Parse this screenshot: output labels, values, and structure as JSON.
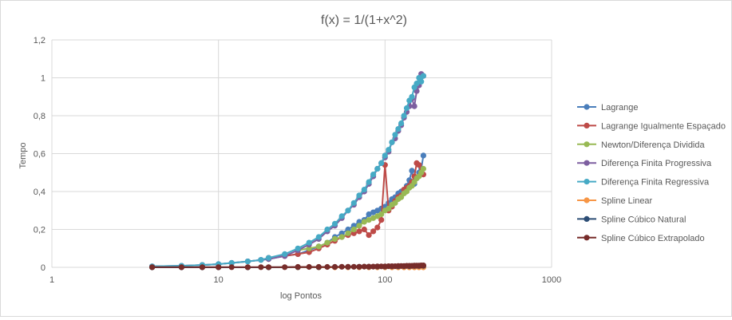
{
  "chart_data": {
    "type": "line",
    "title": "f(x) = 1/(1+x^2)",
    "xlabel": "log Pontos",
    "ylabel": "Tempo",
    "xscale": "log",
    "xlim": [
      1,
      1000
    ],
    "ylim": [
      0,
      1.2
    ],
    "x_ticks": [
      "1",
      "10",
      "100",
      "1000"
    ],
    "y_ticks": [
      "0",
      "0,2",
      "0,4",
      "0,6",
      "0,8",
      "1",
      "1,2"
    ],
    "grid": true,
    "legend_position": "right",
    "series": [
      {
        "name": "Lagrange",
        "color": "#4a7ebb",
        "x": [
          4,
          6,
          8,
          10,
          12,
          15,
          18,
          20,
          25,
          30,
          35,
          40,
          45,
          50,
          55,
          60,
          65,
          70,
          75,
          80,
          85,
          90,
          95,
          100,
          105,
          110,
          115,
          120,
          125,
          130,
          135,
          140,
          145,
          150,
          155,
          160,
          165,
          170
        ],
        "y": [
          0.005,
          0.008,
          0.012,
          0.017,
          0.023,
          0.031,
          0.039,
          0.044,
          0.06,
          0.07,
          0.09,
          0.11,
          0.13,
          0.16,
          0.18,
          0.2,
          0.22,
          0.24,
          0.25,
          0.28,
          0.29,
          0.3,
          0.31,
          0.32,
          0.34,
          0.36,
          0.37,
          0.39,
          0.4,
          0.41,
          0.43,
          0.46,
          0.51,
          0.44,
          0.47,
          0.5,
          0.52,
          0.59
        ]
      },
      {
        "name": "Lagrange Igualmente Espaçado",
        "color": "#be4b48",
        "x": [
          20,
          25,
          30,
          35,
          40,
          45,
          50,
          55,
          60,
          65,
          70,
          75,
          80,
          85,
          90,
          95,
          100,
          105,
          110,
          115,
          120,
          125,
          130,
          135,
          140,
          145,
          150,
          155,
          160,
          165,
          170
        ],
        "y": [
          0.05,
          0.06,
          0.07,
          0.08,
          0.1,
          0.12,
          0.14,
          0.16,
          0.17,
          0.18,
          0.19,
          0.2,
          0.17,
          0.19,
          0.21,
          0.25,
          0.54,
          0.3,
          0.32,
          0.35,
          0.37,
          0.38,
          0.41,
          0.42,
          0.43,
          0.45,
          0.48,
          0.55,
          0.54,
          0.5,
          0.49
        ]
      },
      {
        "name": "Newton/Diferença Dividida",
        "color": "#98b954",
        "x": [
          30,
          35,
          40,
          45,
          50,
          55,
          60,
          65,
          70,
          75,
          80,
          85,
          90,
          95,
          100,
          105,
          110,
          115,
          120,
          125,
          130,
          135,
          140,
          145,
          150,
          155,
          160,
          165,
          170
        ],
        "y": [
          0.09,
          0.1,
          0.11,
          0.13,
          0.15,
          0.16,
          0.18,
          0.2,
          0.22,
          0.24,
          0.25,
          0.26,
          0.27,
          0.28,
          0.3,
          0.31,
          0.33,
          0.34,
          0.36,
          0.37,
          0.39,
          0.4,
          0.42,
          0.43,
          0.45,
          0.47,
          0.48,
          0.5,
          0.52
        ]
      },
      {
        "name": "Diferença Finita Progressiva",
        "color": "#7d5fa0",
        "x": [
          4,
          6,
          8,
          10,
          12,
          15,
          18,
          20,
          25,
          30,
          35,
          40,
          45,
          50,
          55,
          60,
          65,
          70,
          75,
          80,
          85,
          90,
          95,
          100,
          105,
          110,
          115,
          120,
          125,
          130,
          135,
          140,
          145,
          150,
          155,
          160,
          165,
          170
        ],
        "y": [
          0.005,
          0.008,
          0.012,
          0.017,
          0.023,
          0.031,
          0.039,
          0.044,
          0.06,
          0.09,
          0.12,
          0.15,
          0.19,
          0.22,
          0.26,
          0.3,
          0.33,
          0.37,
          0.4,
          0.44,
          0.48,
          0.52,
          0.55,
          0.58,
          0.61,
          0.66,
          0.68,
          0.72,
          0.75,
          0.79,
          0.82,
          0.85,
          0.89,
          0.85,
          0.93,
          0.96,
          1.02,
          1.01
        ]
      },
      {
        "name": "Diferença Finita Regressiva",
        "color": "#46aac5",
        "x": [
          4,
          6,
          8,
          10,
          12,
          15,
          18,
          20,
          25,
          30,
          35,
          40,
          45,
          50,
          55,
          60,
          65,
          70,
          75,
          80,
          85,
          90,
          95,
          100,
          105,
          110,
          115,
          120,
          125,
          130,
          135,
          140,
          145,
          150,
          155,
          160,
          165,
          170
        ],
        "y": [
          0.005,
          0.008,
          0.012,
          0.017,
          0.023,
          0.031,
          0.039,
          0.05,
          0.07,
          0.1,
          0.13,
          0.16,
          0.2,
          0.23,
          0.27,
          0.3,
          0.34,
          0.38,
          0.41,
          0.45,
          0.49,
          0.52,
          0.55,
          0.59,
          0.62,
          0.66,
          0.7,
          0.73,
          0.76,
          0.8,
          0.84,
          0.88,
          0.9,
          0.95,
          0.97,
          1.0,
          0.98,
          1.01
        ]
      },
      {
        "name": "Spline Linear",
        "color": "#f79646",
        "x": [
          4,
          6,
          8,
          10,
          15,
          20,
          30,
          40,
          50,
          60,
          70,
          80,
          90,
          100,
          110,
          120,
          130,
          140,
          150,
          160,
          170
        ],
        "y": [
          0,
          0,
          0,
          0,
          0,
          0,
          0,
          0,
          0,
          0,
          0,
          0,
          0,
          0,
          0,
          0,
          0,
          0,
          0,
          0,
          0
        ]
      },
      {
        "name": "Spline Cúbico Natural",
        "color": "#2c4d75",
        "x": [
          4,
          6,
          8,
          10,
          15,
          20,
          30,
          40,
          50,
          60,
          70,
          80,
          90,
          100,
          110,
          120,
          130,
          140,
          150,
          160,
          170
        ],
        "y": [
          0,
          0,
          0,
          0,
          0,
          0,
          0.001,
          0.001,
          0.002,
          0.002,
          0.003,
          0.003,
          0.004,
          0.004,
          0.005,
          0.005,
          0.006,
          0.006,
          0.007,
          0.007,
          0.008
        ]
      },
      {
        "name": "Spline Cúbico Extrapolado",
        "color": "#772c2a",
        "x": [
          4,
          6,
          8,
          10,
          12,
          15,
          18,
          20,
          25,
          30,
          35,
          40,
          45,
          50,
          55,
          60,
          65,
          70,
          75,
          80,
          85,
          90,
          95,
          100,
          105,
          110,
          115,
          120,
          125,
          130,
          135,
          140,
          145,
          150,
          155,
          160,
          165,
          170
        ],
        "y": [
          0.001,
          0.001,
          0.001,
          0.001,
          0.001,
          0.001,
          0.001,
          0.001,
          0.001,
          0.002,
          0.002,
          0.002,
          0.002,
          0.002,
          0.003,
          0.003,
          0.003,
          0.003,
          0.004,
          0.004,
          0.004,
          0.005,
          0.005,
          0.005,
          0.006,
          0.006,
          0.006,
          0.007,
          0.007,
          0.007,
          0.008,
          0.008,
          0.008,
          0.009,
          0.009,
          0.009,
          0.01,
          0.01
        ]
      }
    ]
  }
}
